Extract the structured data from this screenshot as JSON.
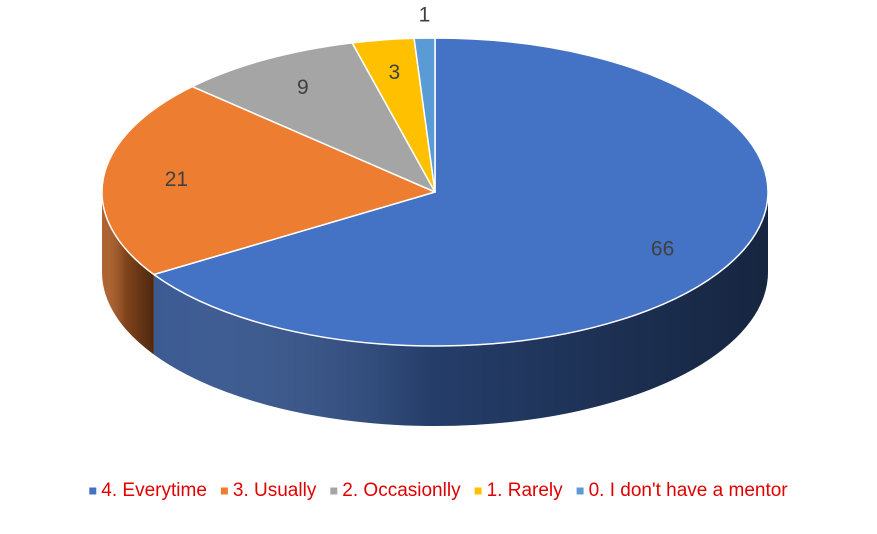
{
  "chart_data": {
    "type": "pie",
    "style": "3d",
    "series": [
      {
        "name": "4. Everytime",
        "value": 66,
        "color": "#4472C4"
      },
      {
        "name": "3. Usually",
        "value": 21,
        "color": "#ED7D31"
      },
      {
        "name": "2. Occasionlly",
        "value": 9,
        "color": "#A5A5A5"
      },
      {
        "name": "1. Rarely",
        "value": 3,
        "color": "#FFC000"
      },
      {
        "name": "0. I don't have a mentor",
        "value": 1,
        "color": "#5B9BD5"
      }
    ],
    "start_position": "top",
    "direction": "clockwise",
    "legend_position": "bottom",
    "legend_text_color": "#E00000",
    "data_labels": true
  }
}
